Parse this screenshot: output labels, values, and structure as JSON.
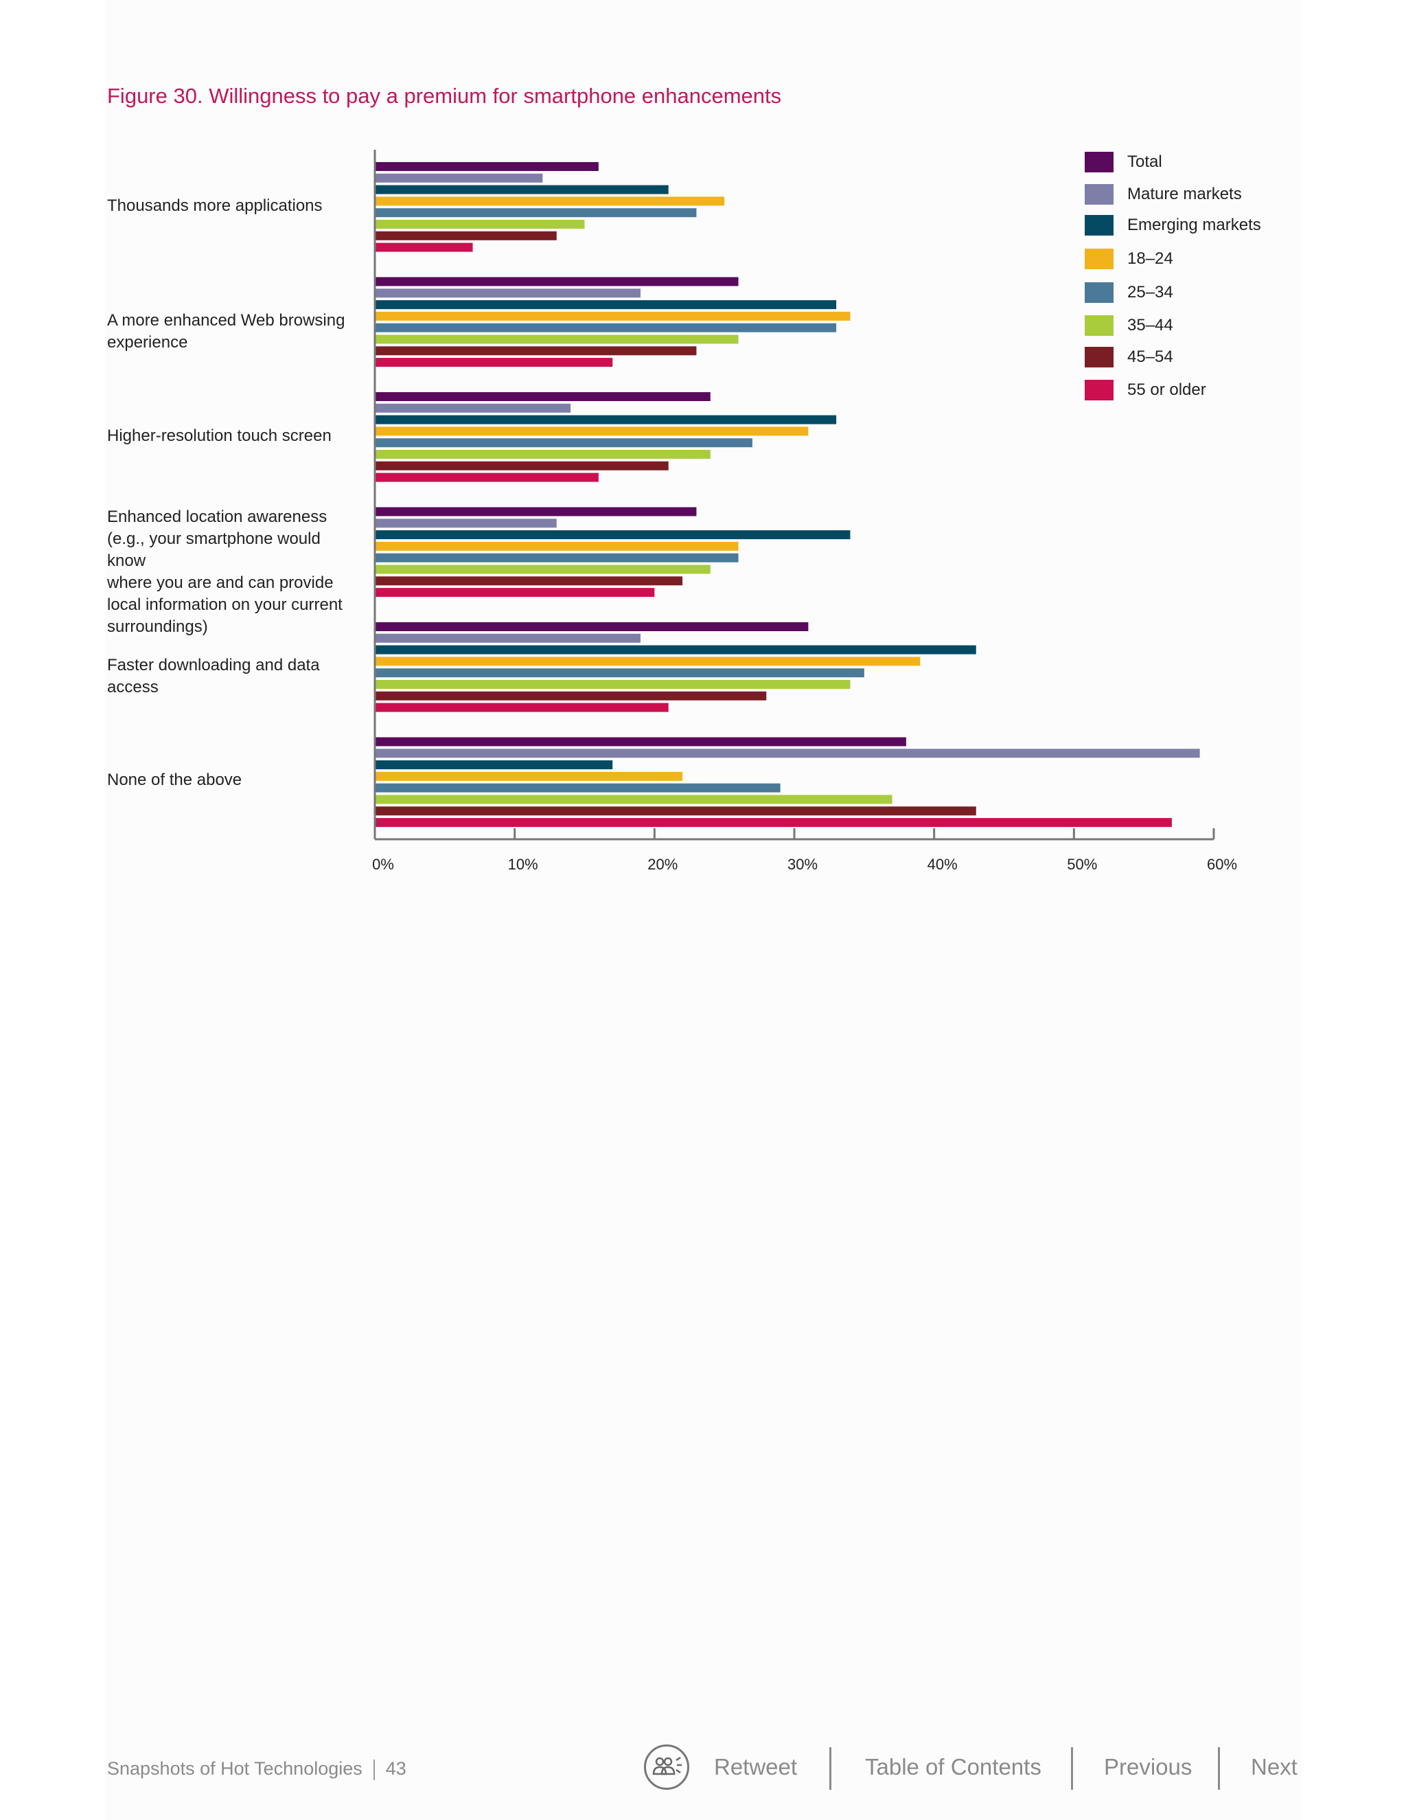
{
  "figure_title": "Figure 30. Willingness to pay a premium for smartphone enhancements",
  "colors": {
    "title": "#c0185a",
    "axis": "#777777",
    "series": [
      "#5a0a5c",
      "#7e7ea8",
      "#054a63",
      "#f2b21b",
      "#4a7a98",
      "#a9cc3d",
      "#7a1e24",
      "#cc0f4f"
    ]
  },
  "chart_data": {
    "type": "bar",
    "orientation": "horizontal",
    "categories": [
      "Thousands more applications",
      "A more enhanced Web browsing\nexperience",
      "Higher-resolution touch screen",
      "Enhanced location awareness\n(e.g., your smartphone would know\nwhere you are and can provide\nlocal information on your current\nsurroundings)",
      "Faster downloading and data access",
      "None of the above"
    ],
    "series": [
      {
        "name": "Total",
        "values": [
          16,
          26,
          24,
          23,
          31,
          38
        ]
      },
      {
        "name": "Mature markets",
        "values": [
          12,
          19,
          14,
          13,
          19,
          59
        ]
      },
      {
        "name": "Emerging markets",
        "values": [
          21,
          33,
          33,
          34,
          43,
          17
        ]
      },
      {
        "name": "18–24",
        "values": [
          25,
          34,
          31,
          26,
          39,
          22
        ]
      },
      {
        "name": "25–34",
        "values": [
          23,
          33,
          27,
          26,
          35,
          29
        ]
      },
      {
        "name": "35–44",
        "values": [
          15,
          26,
          24,
          24,
          34,
          37
        ]
      },
      {
        "name": "45–54",
        "values": [
          13,
          23,
          21,
          22,
          28,
          43
        ]
      },
      {
        "name": "55 or older",
        "values": [
          7,
          17,
          16,
          20,
          21,
          57
        ]
      }
    ],
    "xlim": [
      0,
      60
    ],
    "xticks": [
      "0%",
      "10%",
      "20%",
      "30%",
      "40%",
      "50%",
      "60%"
    ],
    "grid": false,
    "legend_position": "top-right"
  },
  "footer": {
    "doc_title": "Snapshots of Hot Technologies",
    "page_number": "43",
    "nav": {
      "retweet": "Retweet",
      "toc": "Table of Contents",
      "previous": "Previous",
      "next": "Next"
    }
  }
}
